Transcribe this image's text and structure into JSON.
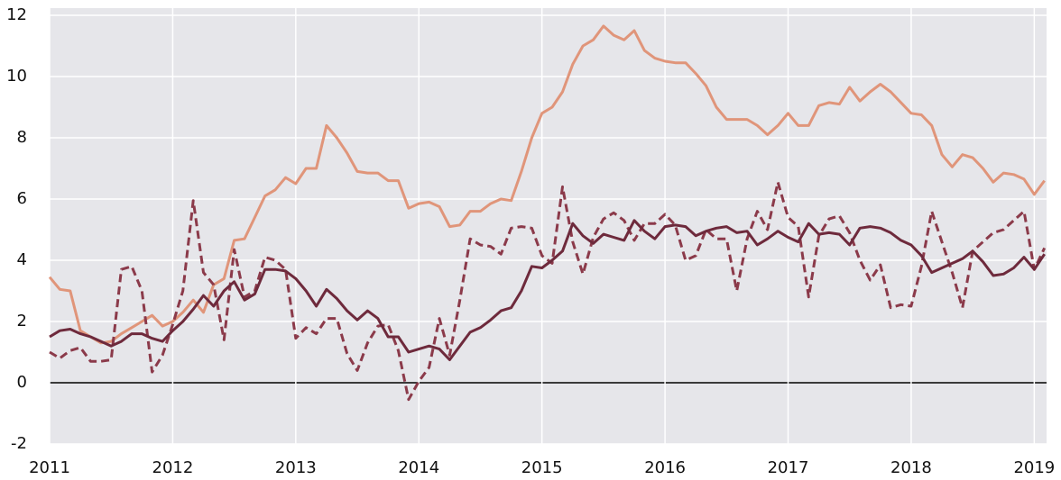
{
  "chart_data": {
    "type": "line",
    "x": [
      2011,
      2011.083,
      2011.167,
      2011.25,
      2011.333,
      2011.417,
      2011.5,
      2011.583,
      2011.667,
      2011.75,
      2011.833,
      2011.917,
      2012,
      2012.083,
      2012.167,
      2012.25,
      2012.333,
      2012.417,
      2012.5,
      2012.583,
      2012.667,
      2012.75,
      2012.833,
      2012.917,
      2013,
      2013.083,
      2013.167,
      2013.25,
      2013.333,
      2013.417,
      2013.5,
      2013.583,
      2013.667,
      2013.75,
      2013.833,
      2013.917,
      2014,
      2014.083,
      2014.167,
      2014.25,
      2014.333,
      2014.417,
      2014.5,
      2014.583,
      2014.667,
      2014.75,
      2014.833,
      2014.917,
      2015,
      2015.083,
      2015.167,
      2015.25,
      2015.333,
      2015.417,
      2015.5,
      2015.583,
      2015.667,
      2015.75,
      2015.833,
      2015.917,
      2016,
      2016.083,
      2016.167,
      2016.25,
      2016.333,
      2016.417,
      2016.5,
      2016.583,
      2016.667,
      2016.75,
      2016.833,
      2016.917,
      2017,
      2017.083,
      2017.167,
      2017.25,
      2017.333,
      2017.417,
      2017.5,
      2017.583,
      2017.667,
      2017.75,
      2017.833,
      2017.917,
      2018,
      2018.083,
      2018.167,
      2018.25,
      2018.333,
      2018.417,
      2018.5,
      2018.583,
      2018.667,
      2018.75,
      2018.833,
      2018.917,
      2019,
      2019.083
    ],
    "series": [
      {
        "color": "#e0957a",
        "dashed": false,
        "values": [
          3.45,
          3.05,
          3.0,
          1.7,
          1.5,
          1.3,
          1.35,
          1.6,
          1.8,
          2.0,
          2.2,
          1.85,
          2.0,
          2.3,
          2.7,
          2.3,
          3.2,
          3.4,
          4.65,
          4.7,
          5.4,
          6.1,
          6.3,
          6.7,
          6.5,
          7.0,
          7.0,
          8.4,
          8.0,
          7.5,
          6.9,
          6.85,
          6.85,
          6.6,
          6.6,
          5.7,
          5.85,
          5.9,
          5.75,
          5.1,
          5.15,
          5.6,
          5.6,
          5.85,
          6.0,
          5.95,
          6.9,
          8.0,
          8.8,
          9.0,
          9.5,
          10.4,
          11.0,
          11.2,
          11.65,
          11.35,
          11.2,
          11.5,
          10.85,
          10.6,
          10.5,
          10.45,
          10.45,
          10.1,
          9.7,
          9.0,
          8.6,
          8.6,
          8.6,
          8.4,
          8.1,
          8.4,
          8.8,
          8.4,
          8.4,
          9.05,
          9.15,
          9.1,
          9.65,
          9.2,
          9.5,
          9.75,
          9.5,
          9.15,
          8.8,
          8.75,
          8.4,
          7.45,
          7.05,
          7.45,
          7.35,
          7.0,
          6.55,
          6.85,
          6.8,
          6.65,
          6.15,
          6.6
        ]
      },
      {
        "color": "#8b3a4a",
        "dashed": true,
        "values": [
          1.0,
          0.8,
          1.05,
          1.15,
          0.7,
          0.7,
          0.75,
          3.7,
          3.8,
          3.0,
          0.35,
          0.9,
          1.9,
          3.0,
          5.95,
          3.6,
          3.2,
          1.4,
          4.35,
          2.8,
          3.0,
          4.1,
          4.0,
          3.7,
          1.45,
          1.8,
          1.6,
          2.1,
          2.1,
          0.95,
          0.4,
          1.3,
          1.85,
          1.9,
          1.05,
          -0.55,
          0.05,
          0.5,
          2.1,
          0.9,
          2.7,
          4.7,
          4.5,
          4.45,
          4.2,
          5.05,
          5.1,
          5.05,
          4.15,
          3.9,
          6.4,
          4.6,
          3.55,
          4.75,
          5.35,
          5.55,
          5.3,
          4.65,
          5.2,
          5.2,
          5.5,
          5.15,
          4.0,
          4.15,
          5.0,
          4.7,
          4.7,
          3.0,
          4.7,
          5.6,
          5.0,
          6.55,
          5.4,
          5.1,
          2.8,
          4.8,
          5.35,
          5.45,
          4.9,
          4.0,
          3.35,
          3.85,
          2.45,
          2.55,
          2.5,
          3.8,
          5.6,
          4.6,
          3.6,
          2.45,
          4.3,
          4.6,
          4.9,
          5.0,
          5.3,
          5.6,
          3.7,
          4.4
        ]
      },
      {
        "color": "#6e2a3c",
        "dashed": false,
        "values": [
          1.5,
          1.7,
          1.75,
          1.6,
          1.5,
          1.35,
          1.2,
          1.35,
          1.6,
          1.6,
          1.45,
          1.35,
          1.7,
          2.0,
          2.4,
          2.85,
          2.5,
          3.0,
          3.3,
          2.7,
          2.9,
          3.7,
          3.7,
          3.65,
          3.4,
          3.0,
          2.5,
          3.05,
          2.75,
          2.35,
          2.05,
          2.35,
          2.1,
          1.5,
          1.5,
          1.0,
          1.1,
          1.2,
          1.1,
          0.75,
          1.2,
          1.65,
          1.8,
          2.05,
          2.35,
          2.45,
          3.0,
          3.8,
          3.75,
          4.0,
          4.3,
          5.2,
          4.8,
          4.55,
          4.85,
          4.75,
          4.65,
          5.3,
          4.95,
          4.7,
          5.1,
          5.15,
          5.1,
          4.8,
          4.95,
          5.05,
          5.1,
          4.9,
          4.95,
          4.5,
          4.7,
          4.95,
          4.75,
          4.6,
          5.2,
          4.85,
          4.9,
          4.85,
          4.5,
          5.05,
          5.1,
          5.05,
          4.9,
          4.65,
          4.5,
          4.15,
          3.6,
          3.75,
          3.9,
          4.05,
          4.3,
          3.95,
          3.5,
          3.55,
          3.75,
          4.1,
          3.7,
          4.2
        ]
      }
    ],
    "xlim": [
      2011,
      2019.1
    ],
    "xticks": [
      2011,
      2012,
      2013,
      2014,
      2015,
      2016,
      2017,
      2018,
      2019
    ],
    "ylim": [
      -2,
      12
    ],
    "yticks": [
      -2,
      0,
      2,
      4,
      6,
      8,
      10,
      12
    ],
    "grid": true
  }
}
